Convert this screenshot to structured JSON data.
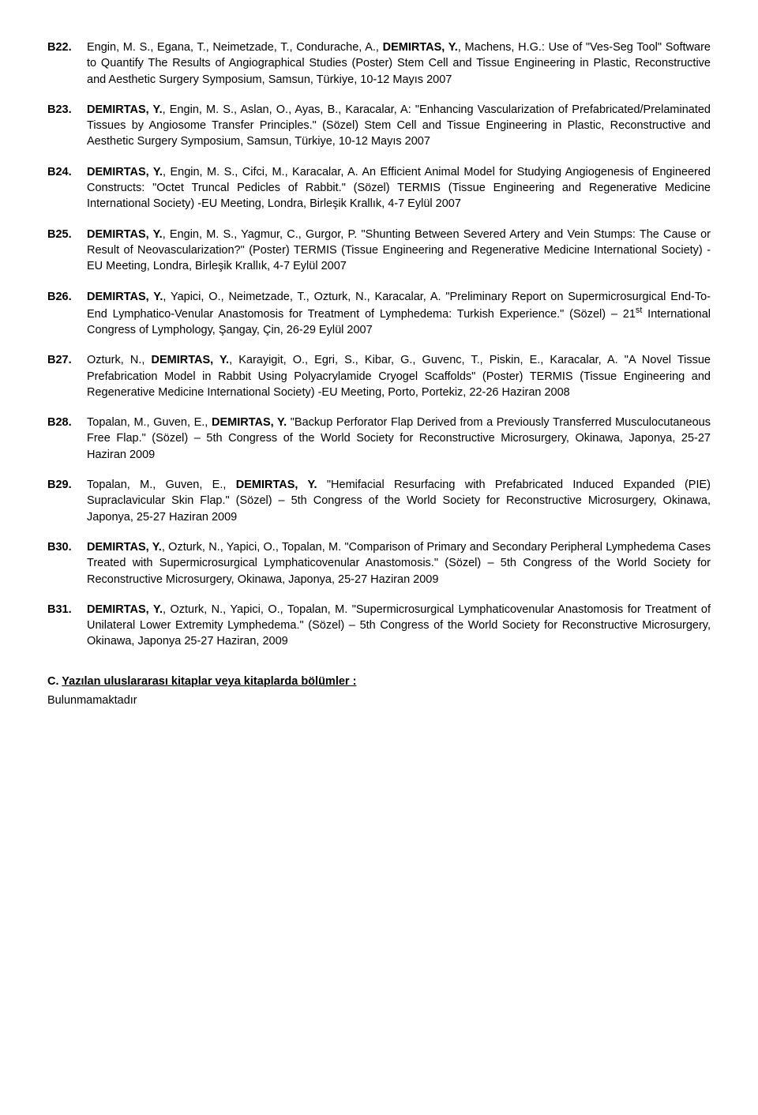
{
  "entries": [
    {
      "num": "B22.",
      "html": "Engin, M. S., Egana, T., Neimetzade, T., Condurache, A., <span class='b'>DEMIRTAS, Y.</span>, Machens, H.G.: Use of \"Ves-Seg Tool\" Software to Quantify The Results of Angiographical Studies (Poster) Stem Cell and Tissue Engineering in Plastic, Reconstructive and Aesthetic Surgery Symposium, Samsun, Türkiye, 10-12 Mayıs 2007"
    },
    {
      "num": "B23.",
      "html": "<span class='b'>DEMIRTAS, Y.</span>, Engin, M. S., Aslan, O., Ayas, B., Karacalar, A: \"Enhancing Vascularization of Prefabricated/Prelaminated Tissues by Angiosome Transfer Principles.\" (Sözel) Stem Cell and Tissue Engineering in Plastic, Reconstructive and Aesthetic Surgery Symposium, Samsun, Türkiye, 10-12 Mayıs 2007"
    },
    {
      "num": "B24.",
      "html": "<span class='b'>DEMIRTAS, Y.</span>, Engin, M. S., Cifci, M., Karacalar, A. An Efficient Animal Model for Studying Angiogenesis of Engineered Constructs: \"Octet Truncal Pedicles of Rabbit.\" (Sözel) TERMIS (Tissue Engineering and Regenerative Medicine International Society) -EU Meeting, Londra, Birleşik Krallık, 4-7 Eylül 2007"
    },
    {
      "num": "B25.",
      "html": "<span class='b'>DEMIRTAS, Y.</span>, Engin, M. S., Yagmur, C., Gurgor, P. \"Shunting Between Severed Artery and Vein Stumps: The Cause or Result of Neovascularization?\" (Poster) TERMIS (Tissue Engineering and Regenerative Medicine International Society) -EU Meeting, Londra, Birleşik Krallık, 4-7 Eylül 2007"
    },
    {
      "num": "B26.",
      "html": "<span class='b'>DEMIRTAS, Y.</span>, Yapici, O., Neimetzade, T., Ozturk, N., Karacalar, A. \"Preliminary Report on Supermicrosurgical End-To-End Lymphatico-Venular Anastomosis for Treatment of Lymphedema: Turkish Experience.\" (Sözel) – 21<sup>st</sup> International Congress of Lymphology, Şangay, Çin, 26-29 Eylül 2007"
    },
    {
      "num": "B27.",
      "html": "Ozturk, N., <span class='b'>DEMIRTAS, Y.</span>, Karayigit, O., Egri, S., Kibar, G., Guvenc, T., Piskin, E., Karacalar, A. \"A Novel Tissue Prefabrication Model in Rabbit Using Polyacrylamide Cryogel Scaffolds\" (Poster) TERMIS (Tissue Engineering and Regenerative Medicine International Society) -EU Meeting, Porto, Portekiz, 22-26 Haziran 2008"
    },
    {
      "num": "B28.",
      "html": "Topalan, M., Guven, E., <span class='b'>DEMIRTAS, Y.</span> \"Backup Perforator Flap Derived from a Previously Transferred Musculocutaneous Free Flap.\" (Sözel) – 5th Congress of the World Society for Reconstructive Microsurgery, Okinawa, Japonya, 25-27 Haziran 2009"
    },
    {
      "num": "B29.",
      "html": "Topalan, M., Guven, E., <span class='b'>DEMIRTAS, Y.</span> \"Hemifacial Resurfacing with Prefabricated Induced Expanded (PIE) Supraclavicular Skin Flap.\" (Sözel) – 5th Congress of the World Society for Reconstructive Microsurgery, Okinawa, Japonya, 25-27 Haziran 2009"
    },
    {
      "num": "B30.",
      "html": "<span class='b'>DEMIRTAS, Y.</span>, Ozturk, N., Yapici, O., Topalan, M. \"Comparison of Primary and Secondary Peripheral Lymphedema Cases Treated with Supermicrosurgical Lymphaticovenular Anastomosis.\" (Sözel) – 5th Congress of the World Society for Reconstructive Microsurgery, Okinawa, Japonya, 25-27 Haziran 2009"
    },
    {
      "num": "B31.",
      "html": "<span class='b'>DEMIRTAS, Y.</span>, Ozturk, N., Yapici, O., Topalan, M. \"Supermicrosurgical Lymphaticovenular Anastomosis for Treatment of Unilateral Lower Extremity Lymphedema.\" (Sözel) – 5th Congress of the World Society for Reconstructive Microsurgery, Okinawa, Japonya 25-27 Haziran, 2009"
    }
  ],
  "section_letter": "C.",
  "section_title": "Yazılan uluslararası kitaplar veya kitaplarda bölümler :",
  "section_sub": "Bulunmamaktadır"
}
